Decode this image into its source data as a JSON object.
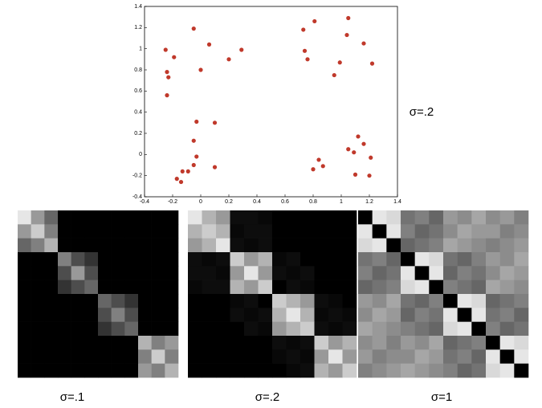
{
  "chart_data": [
    {
      "type": "scatter",
      "label": "σ=.2",
      "color": "#c0392b",
      "x": [
        -0.25,
        -0.19,
        -0.24,
        -0.23,
        -0.24,
        -0.05,
        0.0,
        0.06,
        0.2,
        0.29,
        0.73,
        0.81,
        1.05,
        1.04,
        1.16,
        1.22,
        0.74,
        0.76,
        0.99,
        0.95,
        -0.03,
        0.1,
        -0.05,
        -0.03,
        -0.05,
        0.1,
        -0.09,
        -0.13,
        -0.17,
        -0.14,
        0.8,
        0.84,
        0.87,
        1.05,
        1.09,
        1.12,
        1.16,
        1.21,
        1.1,
        1.2
      ],
      "y": [
        0.99,
        0.92,
        0.78,
        0.73,
        0.56,
        1.19,
        0.8,
        1.04,
        0.9,
        0.99,
        1.18,
        1.26,
        1.29,
        1.13,
        1.05,
        0.86,
        0.98,
        0.9,
        0.87,
        0.75,
        0.31,
        0.3,
        0.13,
        -0.02,
        -0.1,
        -0.12,
        -0.16,
        -0.16,
        -0.23,
        -0.26,
        -0.14,
        -0.05,
        -0.11,
        0.05,
        0.02,
        0.17,
        0.1,
        -0.03,
        -0.19,
        -0.2
      ],
      "xlim": [
        -0.4,
        1.4
      ],
      "ylim": [
        -0.4,
        1.4
      ],
      "xticks": [
        -0.4,
        -0.2,
        0,
        0.2,
        0.4,
        0.6,
        0.8,
        1,
        1.2,
        1.4
      ],
      "yticks": [
        -0.4,
        -0.2,
        0,
        0.2,
        0.4,
        0.6,
        0.8,
        1,
        1.2,
        1.4
      ]
    },
    {
      "type": "heatmap",
      "label": "σ=.1",
      "values": [
        [
          0.9,
          0.6,
          0.4,
          0,
          0,
          0,
          0,
          0,
          0,
          0,
          0,
          0
        ],
        [
          0.6,
          0.8,
          0.5,
          0,
          0,
          0,
          0,
          0,
          0,
          0,
          0,
          0
        ],
        [
          0.4,
          0.5,
          0.7,
          0,
          0,
          0,
          0,
          0,
          0,
          0,
          0,
          0
        ],
        [
          0,
          0,
          0,
          0.5,
          0.3,
          0.2,
          0,
          0,
          0,
          0,
          0,
          0
        ],
        [
          0,
          0,
          0,
          0.3,
          0.6,
          0.3,
          0,
          0,
          0,
          0,
          0,
          0
        ],
        [
          0,
          0,
          0,
          0.2,
          0.3,
          0.4,
          0,
          0,
          0,
          0,
          0,
          0
        ],
        [
          0,
          0,
          0,
          0,
          0,
          0,
          0.4,
          0.3,
          0.2,
          0,
          0,
          0
        ],
        [
          0,
          0,
          0,
          0,
          0,
          0,
          0.3,
          0.5,
          0.3,
          0,
          0,
          0
        ],
        [
          0,
          0,
          0,
          0,
          0,
          0,
          0.2,
          0.3,
          0.4,
          0,
          0,
          0
        ],
        [
          0,
          0,
          0,
          0,
          0,
          0,
          0,
          0,
          0,
          0.7,
          0.5,
          0.6
        ],
        [
          0,
          0,
          0,
          0,
          0,
          0,
          0,
          0,
          0,
          0.5,
          0.8,
          0.5
        ],
        [
          0,
          0,
          0,
          0,
          0,
          0,
          0,
          0,
          0,
          0.6,
          0.5,
          0.7
        ]
      ]
    },
    {
      "type": "heatmap",
      "label": "σ=.2",
      "values": [
        [
          0.9,
          0.7,
          0.6,
          0.05,
          0.05,
          0.03,
          0,
          0,
          0,
          0,
          0,
          0
        ],
        [
          0.7,
          0.8,
          0.7,
          0.03,
          0.05,
          0.05,
          0,
          0,
          0,
          0,
          0,
          0
        ],
        [
          0.6,
          0.7,
          0.9,
          0.05,
          0.03,
          0.05,
          0,
          0,
          0,
          0,
          0,
          0
        ],
        [
          0.05,
          0.03,
          0.05,
          0.8,
          0.6,
          0.7,
          0.03,
          0.05,
          0,
          0,
          0,
          0
        ],
        [
          0.05,
          0.05,
          0.03,
          0.6,
          0.9,
          0.6,
          0.05,
          0.03,
          0.05,
          0,
          0,
          0
        ],
        [
          0.03,
          0.05,
          0.05,
          0.7,
          0.6,
          0.8,
          0,
          0.05,
          0.03,
          0,
          0,
          0
        ],
        [
          0,
          0,
          0,
          0.03,
          0.05,
          0,
          0.8,
          0.7,
          0.6,
          0.05,
          0.03,
          0
        ],
        [
          0,
          0,
          0,
          0.05,
          0.03,
          0.05,
          0.7,
          0.9,
          0.7,
          0.03,
          0.05,
          0.03
        ],
        [
          0,
          0,
          0,
          0,
          0.05,
          0.03,
          0.6,
          0.7,
          0.8,
          0.05,
          0.03,
          0.05
        ],
        [
          0,
          0,
          0,
          0,
          0,
          0,
          0.05,
          0.03,
          0.05,
          0.8,
          0.6,
          0.7
        ],
        [
          0,
          0,
          0,
          0,
          0,
          0,
          0.03,
          0.05,
          0.03,
          0.6,
          0.9,
          0.6
        ],
        [
          0,
          0,
          0,
          0,
          0,
          0,
          0,
          0.03,
          0.05,
          0.7,
          0.6,
          0.8
        ]
      ]
    },
    {
      "type": "heatmap",
      "label": "σ=1",
      "values": [
        [
          0,
          0.9,
          0.85,
          0.45,
          0.5,
          0.4,
          0.6,
          0.55,
          0.65,
          0.55,
          0.6,
          0.5
        ],
        [
          0.9,
          0,
          0.9,
          0.5,
          0.4,
          0.45,
          0.55,
          0.65,
          0.6,
          0.6,
          0.5,
          0.55
        ],
        [
          0.85,
          0.9,
          0,
          0.4,
          0.45,
          0.5,
          0.65,
          0.6,
          0.55,
          0.5,
          0.55,
          0.6
        ],
        [
          0.45,
          0.5,
          0.4,
          0,
          0.9,
          0.85,
          0.45,
          0.4,
          0.5,
          0.6,
          0.55,
          0.65
        ],
        [
          0.5,
          0.4,
          0.45,
          0.9,
          0,
          0.9,
          0.4,
          0.5,
          0.45,
          0.55,
          0.65,
          0.6
        ],
        [
          0.4,
          0.45,
          0.5,
          0.85,
          0.9,
          0,
          0.5,
          0.45,
          0.4,
          0.65,
          0.6,
          0.55
        ],
        [
          0.6,
          0.55,
          0.65,
          0.45,
          0.4,
          0.5,
          0,
          0.9,
          0.85,
          0.4,
          0.45,
          0.5
        ],
        [
          0.55,
          0.65,
          0.6,
          0.4,
          0.5,
          0.45,
          0.9,
          0,
          0.9,
          0.45,
          0.5,
          0.4
        ],
        [
          0.65,
          0.6,
          0.55,
          0.5,
          0.45,
          0.4,
          0.85,
          0.9,
          0,
          0.5,
          0.4,
          0.45
        ],
        [
          0.55,
          0.6,
          0.5,
          0.6,
          0.55,
          0.65,
          0.4,
          0.45,
          0.5,
          0,
          0.9,
          0.85
        ],
        [
          0.6,
          0.5,
          0.55,
          0.55,
          0.65,
          0.6,
          0.45,
          0.5,
          0.4,
          0.9,
          0,
          0.9
        ],
        [
          0.5,
          0.55,
          0.6,
          0.65,
          0.6,
          0.55,
          0.5,
          0.4,
          0.45,
          0.85,
          0.9,
          0
        ]
      ]
    }
  ]
}
